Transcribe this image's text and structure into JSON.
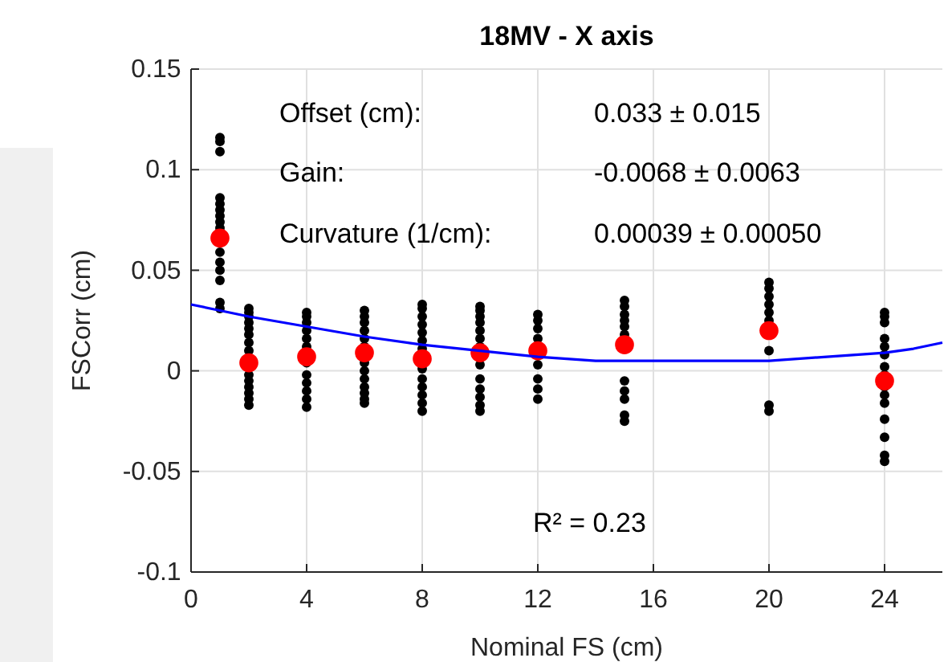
{
  "chart_data": {
    "type": "scatter",
    "title": "18MV - X axis",
    "xlabel": "Nominal FS (cm)",
    "ylabel": "FSCorr (cm)",
    "xlim": [
      0,
      26
    ],
    "xticks": [
      0,
      4,
      8,
      12,
      16,
      20,
      24
    ],
    "ylim": [
      -0.1,
      0.15
    ],
    "yticks": [
      -0.1,
      -0.05,
      0,
      0.05,
      0.1,
      0.15
    ],
    "grid": true,
    "series": [
      {
        "color": "#000000",
        "marker": "circle",
        "x": [
          1,
          1,
          1,
          1,
          1,
          1,
          1,
          1,
          1,
          1,
          1,
          1,
          1,
          1,
          1,
          2,
          2,
          2,
          2,
          2,
          2,
          2,
          2,
          2,
          2,
          2,
          2,
          2,
          2,
          4,
          4,
          4,
          4,
          4,
          4,
          4,
          4,
          4,
          4,
          4,
          4,
          6,
          6,
          6,
          6,
          6,
          6,
          6,
          6,
          6,
          6,
          6,
          6,
          6,
          8,
          8,
          8,
          8,
          8,
          8,
          8,
          8,
          8,
          8,
          8,
          8,
          8,
          10,
          10,
          10,
          10,
          10,
          10,
          10,
          10,
          10,
          10,
          10,
          10,
          10,
          12,
          12,
          12,
          12,
          12,
          12,
          12,
          12,
          15,
          15,
          15,
          15,
          15,
          15,
          15,
          15,
          15,
          15,
          15,
          20,
          20,
          20,
          20,
          20,
          20,
          20,
          20,
          20,
          24,
          24,
          24,
          24,
          24,
          24,
          24,
          24,
          24,
          24,
          24,
          24,
          24,
          24,
          24
        ],
        "values": [
          0.116,
          0.114,
          0.109,
          0.086,
          0.083,
          0.08,
          0.077,
          0.074,
          0.071,
          0.059,
          0.054,
          0.05,
          0.045,
          0.034,
          0.031,
          0.031,
          0.029,
          0.027,
          0.024,
          0.021,
          0.018,
          0.014,
          0.01,
          -0.002,
          -0.005,
          -0.008,
          -0.011,
          -0.014,
          -0.017,
          0.029,
          0.027,
          0.024,
          0.02,
          0.016,
          0.012,
          0.004,
          -0.002,
          -0.006,
          -0.01,
          -0.014,
          -0.018,
          0.03,
          0.027,
          0.024,
          0.02,
          0.016,
          0.012,
          0.004,
          0.0,
          -0.004,
          -0.008,
          -0.011,
          -0.014,
          -0.016,
          0.033,
          0.031,
          0.027,
          0.023,
          0.019,
          0.015,
          0.011,
          0.001,
          -0.004,
          -0.008,
          -0.012,
          -0.016,
          -0.02,
          0.032,
          0.03,
          0.027,
          0.024,
          0.02,
          0.016,
          0.012,
          0.003,
          -0.004,
          -0.009,
          -0.013,
          -0.017,
          -0.02,
          0.028,
          0.025,
          0.021,
          0.016,
          0.003,
          -0.004,
          -0.009,
          -0.014,
          0.035,
          0.032,
          0.028,
          0.025,
          0.022,
          0.018,
          -0.005,
          -0.01,
          -0.014,
          -0.022,
          -0.025,
          0.044,
          0.041,
          0.037,
          0.033,
          0.029,
          0.025,
          0.01,
          -0.017,
          -0.02,
          0.029,
          0.027,
          0.024,
          0.016,
          0.012,
          0.008,
          0.002,
          -0.002,
          -0.008,
          -0.012,
          -0.016,
          -0.024,
          -0.033,
          -0.042,
          -0.045
        ]
      },
      {
        "color": "#ff0000",
        "marker": "circle",
        "x": [
          1,
          2,
          4,
          6,
          8,
          10,
          12,
          15,
          20,
          24
        ],
        "values": [
          0.066,
          0.004,
          0.007,
          0.009,
          0.006,
          0.009,
          0.01,
          0.013,
          0.02,
          -0.005
        ]
      },
      {
        "type": "line",
        "color": "#0000ff",
        "marker": "none",
        "x": [
          0,
          1,
          2,
          4,
          6,
          8,
          10,
          12,
          14,
          15,
          16,
          18,
          20,
          22,
          24,
          25,
          26
        ],
        "values": [
          0.033,
          0.03,
          0.027,
          0.022,
          0.017,
          0.013,
          0.01,
          0.007,
          0.005,
          0.005,
          0.005,
          0.005,
          0.005,
          0.007,
          0.009,
          0.011,
          0.014
        ]
      }
    ],
    "annotations": [
      "Offset (cm):",
      "Gain:",
      "Curvature (1/cm):",
      "0.033 ± 0.015",
      "-0.0068 ± 0.0063",
      "0.00039 ± 0.00050",
      "R² = 0.23"
    ]
  }
}
